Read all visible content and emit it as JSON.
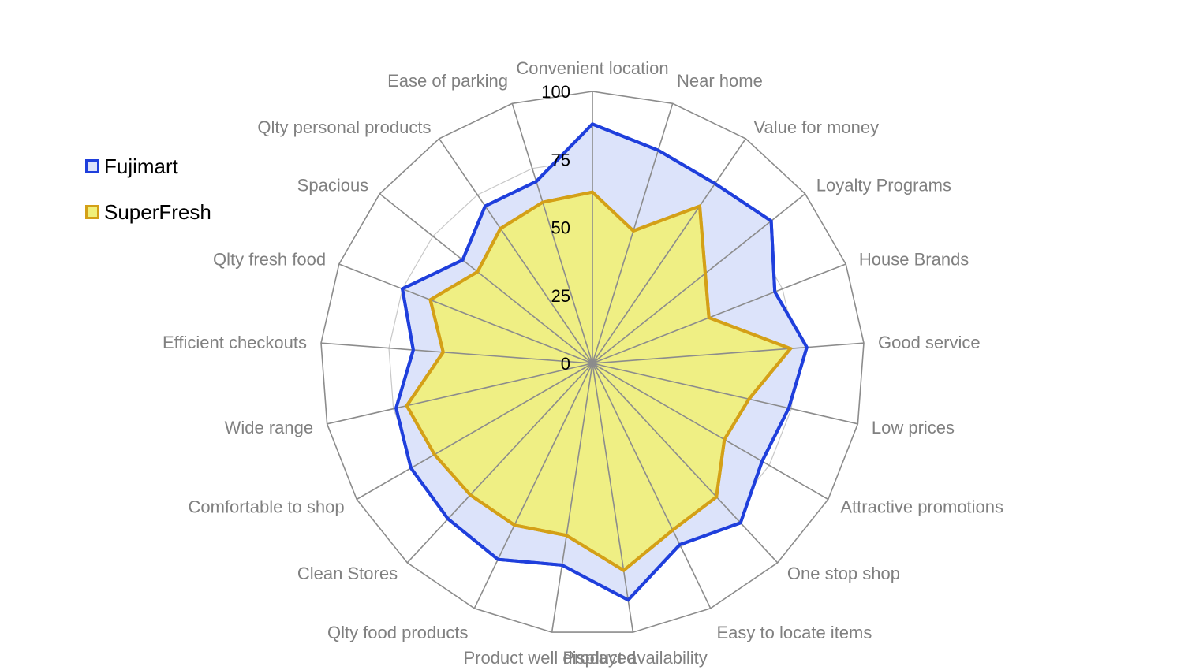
{
  "chart_data": {
    "type": "radar",
    "categories": [
      "Convenient location",
      "Near home",
      "Value for money",
      "Loyalty Programs",
      "House Brands",
      "Good service",
      "Low prices",
      "Attractive promotions",
      "One stop shop",
      "Easy to locate items",
      "Product availability",
      "Product well displayed",
      "Qlty food products",
      "Clean Stores",
      "Comfortable to shop",
      "Wide range",
      "Efficient checkouts",
      "Qlty fresh food",
      "Spacious",
      "Qlty personal products",
      "Ease of parking"
    ],
    "series": [
      {
        "name": "Fujimart",
        "line_color": "#1f3fdc",
        "fill_color": "#dce3fa",
        "values": [
          88,
          82,
          80,
          84,
          72,
          79,
          74,
          72,
          80,
          74,
          88,
          75,
          80,
          78,
          77,
          74,
          66,
          75,
          61,
          70,
          70
        ]
      },
      {
        "name": "SuperFresh",
        "line_color": "#d4a017",
        "fill_color": "#f0f07a",
        "values": [
          63,
          51,
          70,
          53,
          46,
          73,
          59,
          56,
          67,
          68,
          77,
          64,
          66,
          66,
          67,
          70,
          55,
          64,
          54,
          60,
          62
        ]
      }
    ],
    "rlim": [
      0,
      100
    ],
    "ticks": [
      "0",
      "25",
      "50",
      "75",
      "100"
    ],
    "grid": true,
    "legend": "left"
  }
}
